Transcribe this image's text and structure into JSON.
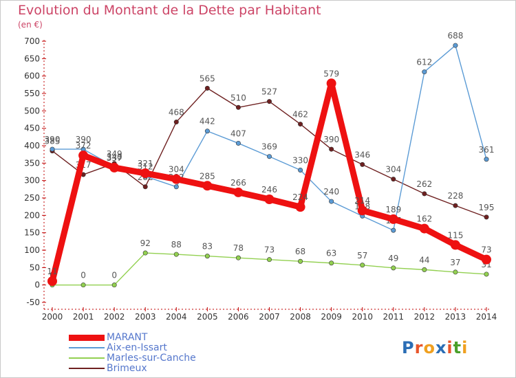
{
  "header": {
    "title": "Evolution du Montant de la Dette par Habitant",
    "unit": "(en €)"
  },
  "logo": {
    "text": "Proxiti",
    "letters": [
      "P",
      "r",
      "o",
      "x",
      "i",
      "t",
      "i"
    ],
    "colors": [
      "#2a6db5",
      "#e8552a",
      "#f0a020",
      "#2a6db5",
      "#e8552a",
      "#4aa02a",
      "#f0a020"
    ]
  },
  "chart_data": {
    "type": "line",
    "x": [
      2000,
      2001,
      2002,
      2003,
      2004,
      2005,
      2006,
      2007,
      2008,
      2009,
      2010,
      2011,
      2012,
      2013,
      2014
    ],
    "ylim": [
      -50,
      700
    ],
    "yticks": [
      -50,
      0,
      50,
      100,
      150,
      200,
      250,
      300,
      350,
      400,
      450,
      500,
      550,
      600,
      650,
      700
    ],
    "grid": false,
    "legend_position": "bottom-left",
    "series": [
      {
        "name": "Brimeux",
        "color": "#6e2020",
        "values": [
          385,
          317,
          349,
          282,
          468,
          565,
          510,
          527,
          462,
          390,
          346,
          304,
          262,
          228,
          195
        ],
        "labels": [
          "385",
          "317",
          "349",
          "282",
          "468",
          "565",
          "510",
          "527",
          "462",
          "390",
          "346",
          "304",
          "262",
          "228",
          "195"
        ]
      },
      {
        "name": "Aix-en-Issart",
        "color": "#5b9bd5",
        "values": [
          390,
          390,
          340,
          312,
          282,
          442,
          407,
          369,
          330,
          240,
          198,
          157,
          612,
          688,
          361
        ],
        "labels": [
          "390",
          "390",
          "340",
          "312",
          "282",
          "442",
          "407",
          "369",
          "330",
          "240",
          "198",
          "157",
          "612",
          "688",
          "361"
        ]
      },
      {
        "name": "Marles-sur-Canche",
        "color": "#92d050",
        "values": [
          0,
          0,
          0,
          92,
          88,
          83,
          78,
          73,
          68,
          63,
          57,
          49,
          44,
          37,
          31
        ],
        "labels": [
          "0",
          "0",
          "0",
          "92",
          "88",
          "83",
          "78",
          "73",
          "68",
          "63",
          "57",
          "49",
          "44",
          "37",
          "31"
        ]
      },
      {
        "name": "MARANT",
        "color": "#ee1111",
        "values": [
          11,
          372,
          337,
          321,
          304,
          285,
          266,
          246,
          224,
          579,
          214,
          189,
          162,
          115,
          73
        ],
        "labels": [
          "11",
          "372",
          "337",
          "321",
          "304",
          "285",
          "266",
          "246",
          "224",
          "579",
          "214",
          "189",
          "162",
          "115",
          "73"
        ]
      }
    ],
    "legend": [
      "MARANT",
      "Aix-en-Issart",
      "Marles-sur-Canche",
      "Brimeux"
    ]
  }
}
